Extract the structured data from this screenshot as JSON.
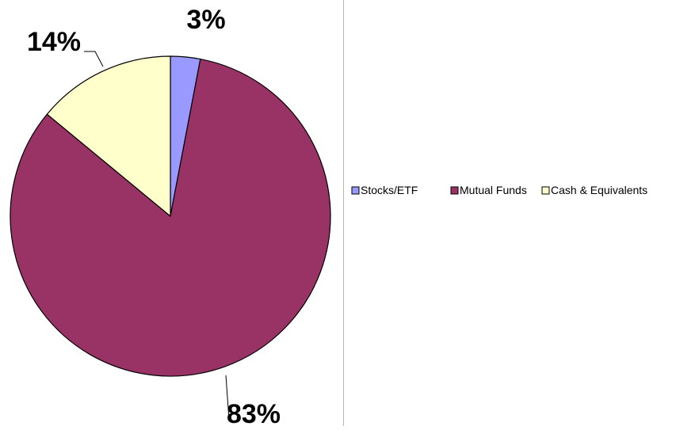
{
  "chart_data": {
    "type": "pie",
    "categories": [
      "Stocks/ETF",
      "Mutual Funds",
      "Cash & Equivalents"
    ],
    "values": [
      3,
      83,
      14
    ],
    "data_labels": [
      "3%",
      "83%",
      "14%"
    ],
    "colors": [
      "#9999ff",
      "#993366",
      "#ffffcc"
    ],
    "start_angle_deg": 0,
    "direction": "clockwise",
    "legend_position": "right",
    "title": ""
  }
}
